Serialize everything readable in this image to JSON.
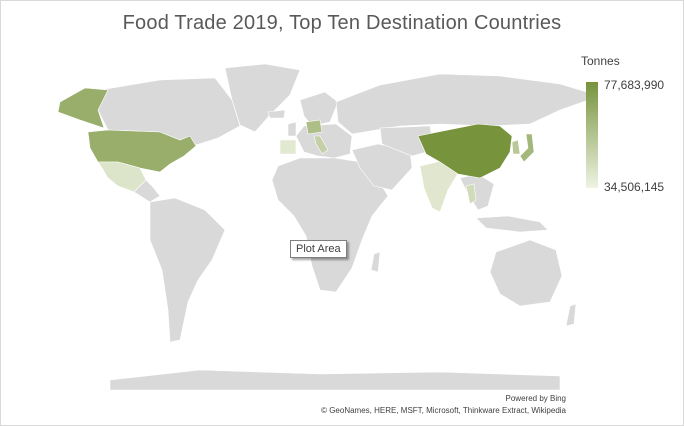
{
  "chart_data": {
    "type": "choropleth-map",
    "title": "Food Trade 2019, Top Ten Destination Countries",
    "legend": {
      "title": "Tonnes",
      "max_label": "77,683,990",
      "min_label": "34,506,145",
      "max_value": 77683990,
      "min_value": 34506145,
      "max_color": "#77933c",
      "min_color": "#eef3e2",
      "position": "top-right"
    },
    "base_land_color": "#d9d9d9",
    "regions": [
      {
        "name": "China",
        "level": 1.0
      },
      {
        "name": "United States",
        "level": 0.72
      },
      {
        "name": "Japan",
        "level": 0.62
      },
      {
        "name": "Germany",
        "level": 0.55
      },
      {
        "name": "Italy",
        "level": 0.35
      },
      {
        "name": "Korea",
        "level": 0.45
      },
      {
        "name": "Mexico",
        "level": 0.15
      },
      {
        "name": "India",
        "level": 0.12
      },
      {
        "name": "Spain",
        "level": 0.1
      },
      {
        "name": "Thailand",
        "level": 0.25
      }
    ],
    "tooltip": "Plot Area",
    "attribution": {
      "powered_by": "Powered by Bing",
      "credits": "© GeoNames, HERE, MSFT, Microsoft, Thinkware Extract, Wikipedia"
    }
  }
}
